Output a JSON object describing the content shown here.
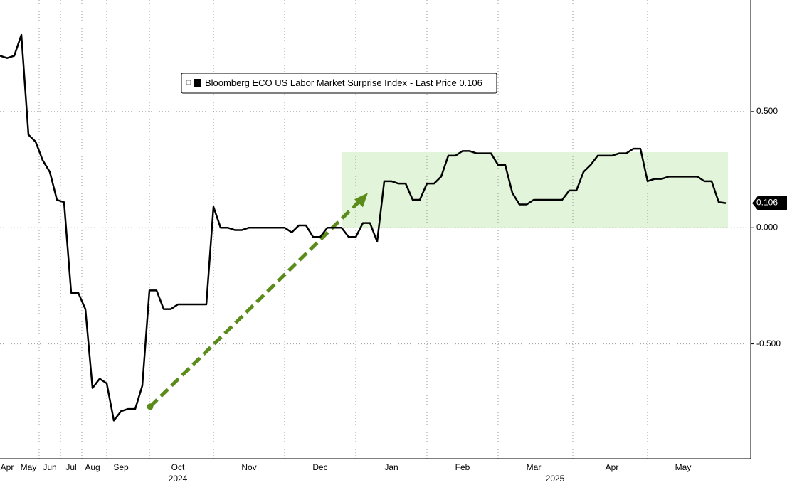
{
  "chart_data": {
    "type": "line",
    "categories": [
      null,
      "Apr",
      null,
      null,
      "May",
      null,
      null,
      "Jun",
      null,
      null,
      "Jul",
      null,
      null,
      "Aug",
      null,
      null,
      null,
      "Sep",
      null,
      null,
      null,
      null,
      null,
      null,
      null,
      "Oct",
      null,
      null,
      null,
      null,
      null,
      null,
      null,
      null,
      null,
      "Nov",
      null,
      null,
      null,
      null,
      null,
      null,
      null,
      null,
      null,
      "Dec",
      null,
      null,
      null,
      null,
      null,
      null,
      null,
      null,
      null,
      "Jan",
      null,
      null,
      null,
      null,
      null,
      null,
      null,
      null,
      null,
      "Feb",
      null,
      null,
      null,
      null,
      null,
      null,
      null,
      null,
      null,
      "Mar",
      null,
      null,
      null,
      null,
      null,
      null,
      null,
      null,
      null,
      null,
      "Apr",
      null,
      null,
      null,
      null,
      null,
      null,
      null,
      null,
      null,
      "May",
      null,
      null,
      null,
      null,
      null,
      null
    ],
    "years": [
      null,
      null,
      null,
      null,
      null,
      null,
      null,
      null,
      null,
      null,
      null,
      null,
      null,
      null,
      null,
      null,
      null,
      null,
      null,
      null,
      null,
      null,
      null,
      null,
      null,
      "2024",
      null,
      null,
      null,
      null,
      null,
      null,
      null,
      null,
      null,
      null,
      null,
      null,
      null,
      null,
      null,
      null,
      null,
      null,
      null,
      null,
      null,
      null,
      null,
      null,
      null,
      null,
      null,
      null,
      null,
      null,
      null,
      null,
      null,
      null,
      null,
      null,
      null,
      null,
      null,
      null,
      null,
      null,
      null,
      null,
      null,
      null,
      null,
      null,
      null,
      null,
      null,
      null,
      "2025",
      null,
      null,
      null,
      null,
      null,
      null,
      null,
      null,
      null,
      null,
      null,
      null,
      null,
      null,
      null,
      null,
      null,
      null,
      null,
      null,
      null,
      null,
      null,
      null
    ],
    "series": [
      {
        "name": "Bloomberg ECO US Labor Market Surprise Index",
        "color": "#000000",
        "values": [
          0.74,
          0.73,
          0.74,
          0.83,
          0.4,
          0.37,
          0.29,
          0.24,
          0.12,
          0.11,
          -0.28,
          -0.28,
          -0.35,
          -0.69,
          -0.65,
          -0.67,
          -0.83,
          -0.79,
          -0.78,
          -0.78,
          -0.68,
          -0.27,
          -0.27,
          -0.35,
          -0.35,
          -0.33,
          -0.33,
          -0.33,
          -0.33,
          -0.33,
          0.09,
          0.0,
          0.0,
          -0.01,
          -0.01,
          0.0,
          0.0,
          0.0,
          0.0,
          0.0,
          0.0,
          -0.02,
          0.01,
          0.01,
          -0.04,
          -0.04,
          0.0,
          0.0,
          0.0,
          -0.04,
          -0.04,
          0.02,
          0.02,
          -0.06,
          0.2,
          0.2,
          0.19,
          0.19,
          0.12,
          0.12,
          0.19,
          0.19,
          0.22,
          0.31,
          0.31,
          0.33,
          0.33,
          0.32,
          0.32,
          0.32,
          0.27,
          0.27,
          0.15,
          0.1,
          0.1,
          0.12,
          0.12,
          0.12,
          0.12,
          0.12,
          0.16,
          0.16,
          0.24,
          0.27,
          0.31,
          0.31,
          0.31,
          0.32,
          0.32,
          0.34,
          0.34,
          0.2,
          0.21,
          0.21,
          0.22,
          0.22,
          0.22,
          0.22,
          0.22,
          0.2,
          0.2,
          0.11,
          0.106
        ]
      }
    ],
    "legend_suffix": "- Last Price 0.106",
    "last_value_label": "0.106",
    "ylim": [
      -0.994,
      0.98
    ],
    "yticks": [
      {
        "value": -0.5,
        "label": "-0.500"
      },
      {
        "value": 0,
        "label": "0.000"
      },
      {
        "value": 0.5,
        "label": "0.500"
      }
    ],
    "grid": true,
    "highlight": {
      "color": "#e2f4da",
      "ylim": [
        0,
        0.325
      ]
    },
    "arrow": {
      "color": "#5b8c1b",
      "values": [
        -0.77,
        0.15
      ]
    }
  }
}
